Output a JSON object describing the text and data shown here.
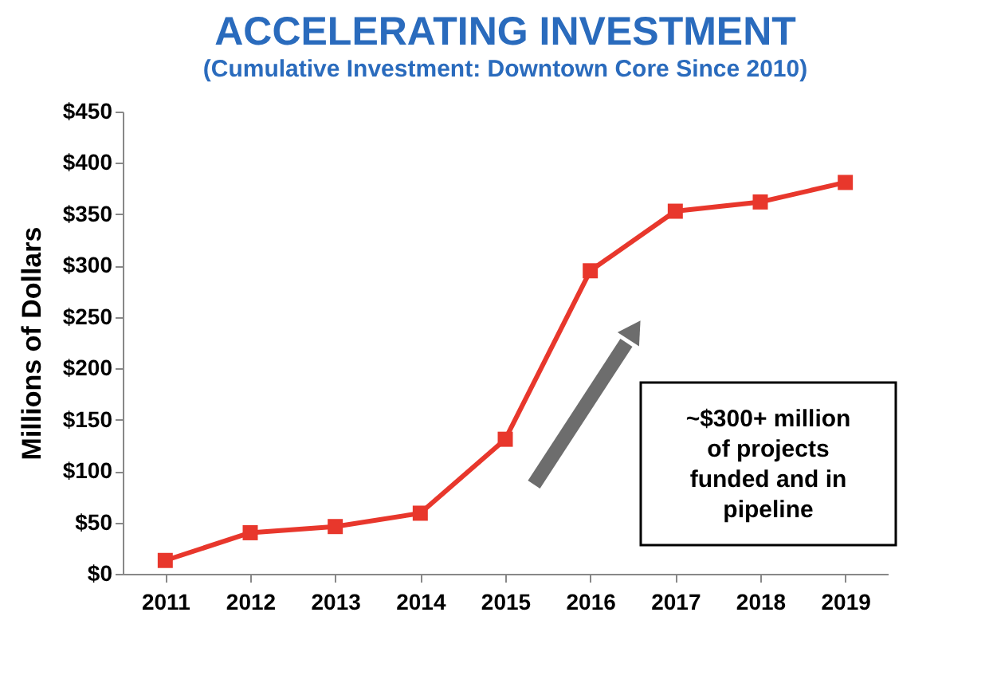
{
  "chart_data": {
    "type": "line",
    "title": "ACCELERATING INVESTMENT",
    "subtitle": "(Cumulative Investment: Downtown Core Since 2010)",
    "ylabel": "Millions of Dollars",
    "categories": [
      "2011",
      "2012",
      "2013",
      "2014",
      "2015",
      "2016",
      "2017",
      "2018",
      "2019"
    ],
    "series": [
      {
        "color": "#e8372c",
        "values": [
          13,
          40,
          46,
          59,
          131,
          295,
          353,
          362,
          381
        ]
      }
    ],
    "ylim": [
      0,
      450
    ],
    "yticks": [
      {
        "value": 0,
        "label": "$0"
      },
      {
        "value": 50,
        "label": "$50"
      },
      {
        "value": 100,
        "label": "$100"
      },
      {
        "value": 150,
        "label": "$150"
      },
      {
        "value": 200,
        "label": "$200"
      },
      {
        "value": 250,
        "label": "$250"
      },
      {
        "value": 300,
        "label": "$300"
      },
      {
        "value": 350,
        "label": "$350"
      },
      {
        "value": 400,
        "label": "$400"
      },
      {
        "value": 450,
        "label": "$450"
      }
    ],
    "marker": "square",
    "line_style": "solid",
    "grid": false,
    "annotations": [
      "~$300+ million\nof projects\nfunded and in\npipeline"
    ]
  }
}
